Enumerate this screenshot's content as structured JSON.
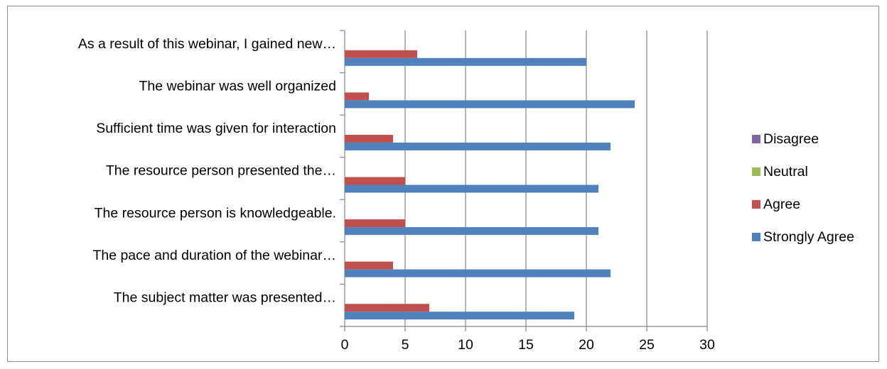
{
  "chart_data": {
    "type": "bar",
    "orientation": "horizontal",
    "categories": [
      "As a result of this webinar, I gained new…",
      "The webinar was well organized",
      "Sufficient time was given for interaction",
      "The resource person presented the…",
      "The resource person is knowledgeable.",
      "The pace and duration of the webinar…",
      "The subject matter was presented…"
    ],
    "series": [
      {
        "name": "Disagree",
        "color": "#8064a2",
        "values": [
          0,
          0,
          0,
          0,
          0,
          0,
          0
        ]
      },
      {
        "name": "Neutral",
        "color": "#9bbb59",
        "values": [
          0,
          0,
          0,
          0,
          0,
          0,
          0
        ]
      },
      {
        "name": "Agree",
        "color": "#c0504d",
        "values": [
          6,
          2,
          4,
          5,
          5,
          4,
          7
        ]
      },
      {
        "name": "Strongly Agree",
        "color": "#4f81bd",
        "values": [
          20,
          24,
          22,
          21,
          21,
          22,
          19
        ]
      }
    ],
    "xlim": [
      0,
      30
    ],
    "xticks": [
      "0",
      "5",
      "10",
      "15",
      "20",
      "25",
      "30"
    ],
    "title": "",
    "xlabel": "",
    "ylabel": "",
    "grid": "vertical",
    "legend": "right"
  }
}
